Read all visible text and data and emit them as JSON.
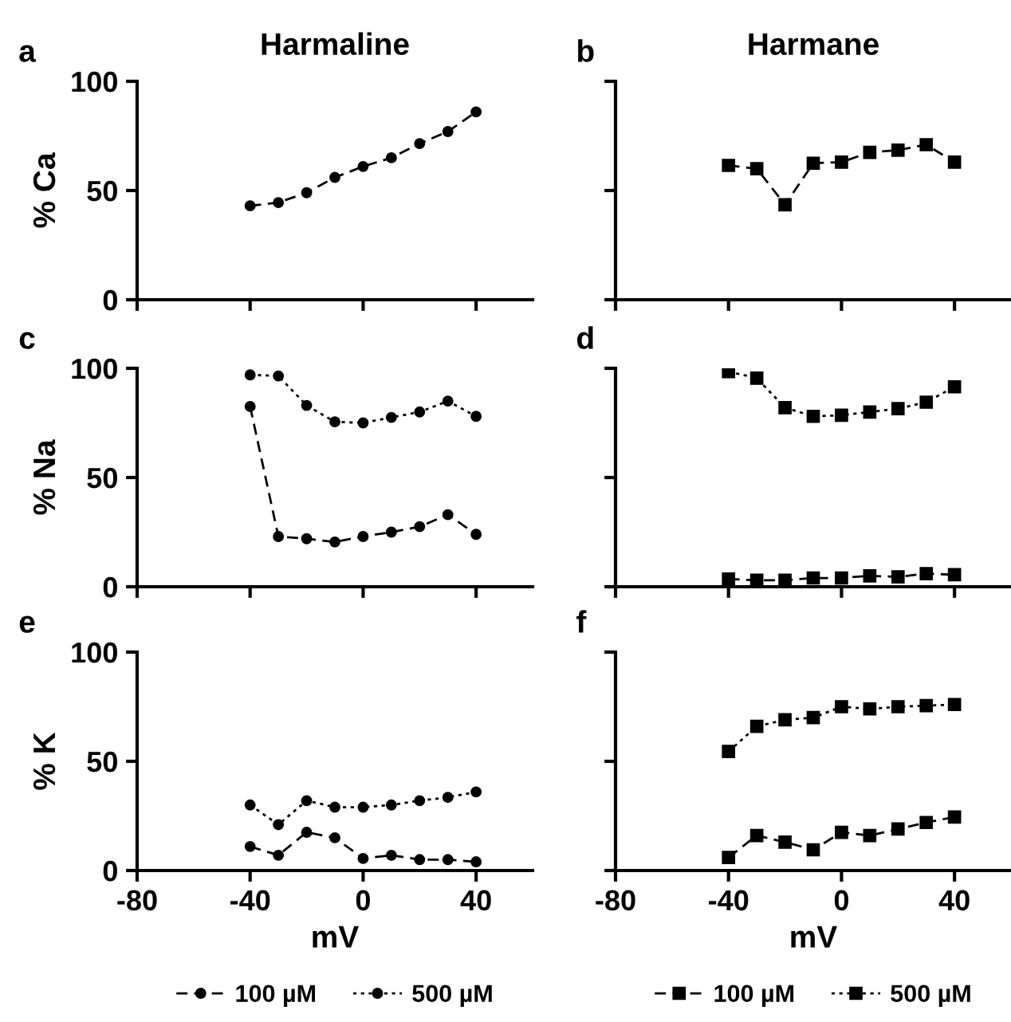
{
  "chart_data": [
    {
      "type": "line",
      "title": "Harmaline",
      "ylabel": "% Ca",
      "annotations": [
        "a"
      ],
      "x": [
        -40,
        -30,
        -20,
        -10,
        0,
        10,
        20,
        30,
        40
      ],
      "xlim": [
        -80,
        60
      ],
      "xticks": [
        -80,
        -40,
        0,
        40
      ],
      "ylim": [
        0,
        100
      ],
      "yticks": [
        0,
        50,
        100
      ],
      "tick_labels": "y",
      "marker": "circle",
      "grid": false,
      "legend": false,
      "series": [
        {
          "color": "#000000",
          "line_style": "dashed",
          "values": [
            43,
            44.5,
            49,
            56,
            61,
            65,
            71.5,
            77,
            86
          ]
        }
      ]
    },
    {
      "type": "line",
      "title": "Harmane",
      "annotations": [
        "b"
      ],
      "x": [
        -40,
        -30,
        -20,
        -10,
        0,
        10,
        20,
        30,
        40
      ],
      "xlim": [
        -80,
        60
      ],
      "xticks": [
        -80,
        -40,
        0,
        40
      ],
      "ylim": [
        0,
        100
      ],
      "yticks": [
        0,
        50,
        100
      ],
      "tick_labels": false,
      "marker": "square",
      "grid": false,
      "legend": false,
      "series": [
        {
          "color": "#000000",
          "line_style": "dashed",
          "values": [
            61.5,
            60,
            43.5,
            62.5,
            63,
            67.5,
            68.5,
            71,
            63
          ]
        }
      ]
    },
    {
      "type": "line",
      "ylabel": "% Na",
      "annotations": [
        "c"
      ],
      "x": [
        -40,
        -30,
        -20,
        -10,
        0,
        10,
        20,
        30,
        40
      ],
      "xlim": [
        -80,
        60
      ],
      "xticks": [
        -80,
        -40,
        0,
        40
      ],
      "ylim": [
        0,
        100
      ],
      "yticks": [
        0,
        50,
        100
      ],
      "tick_labels": "y",
      "marker": "circle",
      "grid": false,
      "legend": false,
      "series": [
        {
          "color": "#000000",
          "line_style": "dashed",
          "values": [
            82.5,
            23,
            22,
            20.5,
            23,
            25,
            27.5,
            33,
            24
          ]
        },
        {
          "color": "#000000",
          "line_style": "dotted",
          "values": [
            97,
            96.5,
            83,
            75.5,
            75,
            77.5,
            80,
            85,
            78
          ]
        }
      ]
    },
    {
      "type": "line",
      "annotations": [
        "d"
      ],
      "x": [
        -40,
        -30,
        -20,
        -10,
        0,
        10,
        20,
        30,
        40
      ],
      "xlim": [
        -80,
        60
      ],
      "xticks": [
        -80,
        -40,
        0,
        40
      ],
      "ylim": [
        0,
        100
      ],
      "yticks": [
        0,
        50,
        100
      ],
      "tick_labels": false,
      "marker": "square",
      "grid": false,
      "legend": false,
      "series": [
        {
          "color": "#000000",
          "line_style": "dashed",
          "values": [
            3.5,
            3,
            3,
            4,
            4,
            5,
            4.5,
            6,
            5.5
          ]
        },
        {
          "color": "#000000",
          "line_style": "dotted",
          "values": [
            98.5,
            95.5,
            82,
            78,
            78.5,
            80,
            81.5,
            84.5,
            91.5
          ]
        }
      ]
    },
    {
      "type": "line",
      "ylabel": "% K",
      "xlabel": "mV",
      "annotations": [
        "e"
      ],
      "x": [
        -40,
        -30,
        -20,
        -10,
        0,
        10,
        20,
        30,
        40
      ],
      "xlim": [
        -80,
        60
      ],
      "xticks": [
        -80,
        -40,
        0,
        40
      ],
      "ylim": [
        0,
        100
      ],
      "yticks": [
        0,
        50,
        100
      ],
      "marker": "circle",
      "grid": false,
      "legend": "bottom",
      "series": [
        {
          "name": "100 µM",
          "color": "#000000",
          "line_style": "dashed",
          "values": [
            11,
            7,
            17.5,
            15,
            5.5,
            7,
            5,
            5,
            4
          ]
        },
        {
          "name": "500 µM",
          "color": "#000000",
          "line_style": "dotted",
          "values": [
            30,
            21,
            32,
            29,
            29,
            30,
            32,
            33.5,
            36
          ]
        }
      ]
    },
    {
      "type": "line",
      "xlabel": "mV",
      "annotations": [
        "f"
      ],
      "x": [
        -40,
        -30,
        -20,
        -10,
        0,
        10,
        20,
        30,
        40
      ],
      "xlim": [
        -80,
        60
      ],
      "xticks": [
        -80,
        -40,
        0,
        40
      ],
      "ylim": [
        0,
        100
      ],
      "yticks": [
        0,
        50,
        100
      ],
      "tick_labels": "x",
      "marker": "square",
      "grid": false,
      "legend": "bottom",
      "series": [
        {
          "name": "100 µM",
          "color": "#000000",
          "line_style": "dashed",
          "values": [
            6,
            16,
            13,
            9.5,
            17.5,
            16,
            19,
            22,
            24.5
          ]
        },
        {
          "name": "500 µM",
          "color": "#000000",
          "line_style": "dotted",
          "values": [
            54.5,
            66,
            69,
            70,
            75,
            74,
            75,
            75.5,
            76
          ]
        }
      ]
    }
  ]
}
